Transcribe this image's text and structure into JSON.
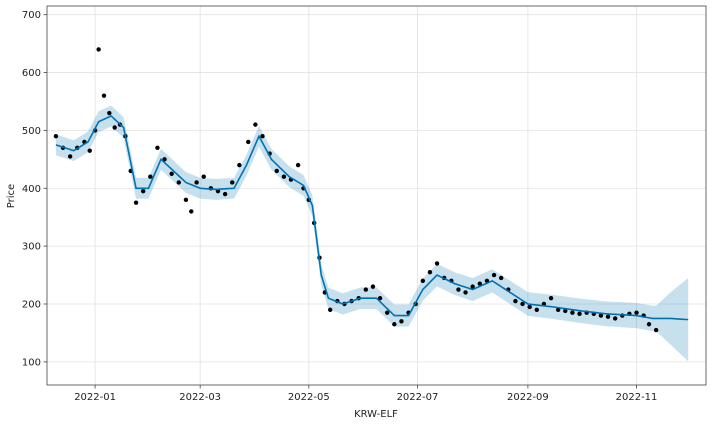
{
  "chart_data": {
    "type": "line",
    "title": "",
    "xlabel": "KRW-ELF",
    "ylabel": "Price",
    "xlim": [
      "2021-12-05",
      "2022-12-10"
    ],
    "ylim": [
      60,
      715
    ],
    "grid": true,
    "x_ticks": [
      "2022-01-01",
      "2022-03-01",
      "2022-05-01",
      "2022-07-01",
      "2022-09-01",
      "2022-11-01"
    ],
    "x_tick_labels": [
      "2022-01",
      "2022-03",
      "2022-05",
      "2022-07",
      "2022-09",
      "2022-11"
    ],
    "y_ticks": [
      100,
      200,
      300,
      400,
      500,
      600,
      700
    ],
    "series": [
      {
        "kind": "observed",
        "color": "#000000",
        "points": [
          [
            "2021-12-10",
            490
          ],
          [
            "2021-12-14",
            470
          ],
          [
            "2021-12-18",
            455
          ],
          [
            "2021-12-22",
            470
          ],
          [
            "2021-12-26",
            480
          ],
          [
            "2021-12-29",
            465
          ],
          [
            "2022-01-01",
            500
          ],
          [
            "2022-01-03",
            640
          ],
          [
            "2022-01-06",
            560
          ],
          [
            "2022-01-09",
            530
          ],
          [
            "2022-01-12",
            505
          ],
          [
            "2022-01-15",
            510
          ],
          [
            "2022-01-18",
            490
          ],
          [
            "2022-01-21",
            430
          ],
          [
            "2022-01-24",
            375
          ],
          [
            "2022-01-28",
            395
          ],
          [
            "2022-02-01",
            420
          ],
          [
            "2022-02-05",
            470
          ],
          [
            "2022-02-09",
            450
          ],
          [
            "2022-02-13",
            425
          ],
          [
            "2022-02-17",
            410
          ],
          [
            "2022-02-21",
            380
          ],
          [
            "2022-02-24",
            360
          ],
          [
            "2022-02-27",
            410
          ],
          [
            "2022-03-03",
            420
          ],
          [
            "2022-03-07",
            400
          ],
          [
            "2022-03-11",
            395
          ],
          [
            "2022-03-15",
            390
          ],
          [
            "2022-03-19",
            410
          ],
          [
            "2022-03-23",
            440
          ],
          [
            "2022-03-28",
            480
          ],
          [
            "2022-04-01",
            510
          ],
          [
            "2022-04-05",
            490
          ],
          [
            "2022-04-09",
            460
          ],
          [
            "2022-04-13",
            430
          ],
          [
            "2022-04-17",
            420
          ],
          [
            "2022-04-21",
            415
          ],
          [
            "2022-04-25",
            440
          ],
          [
            "2022-04-28",
            400
          ],
          [
            "2022-05-01",
            380
          ],
          [
            "2022-05-04",
            340
          ],
          [
            "2022-05-07",
            280
          ],
          [
            "2022-05-10",
            220
          ],
          [
            "2022-05-13",
            190
          ],
          [
            "2022-05-17",
            205
          ],
          [
            "2022-05-21",
            200
          ],
          [
            "2022-05-25",
            205
          ],
          [
            "2022-05-29",
            210
          ],
          [
            "2022-06-02",
            225
          ],
          [
            "2022-06-06",
            230
          ],
          [
            "2022-06-10",
            210
          ],
          [
            "2022-06-14",
            185
          ],
          [
            "2022-06-18",
            165
          ],
          [
            "2022-06-22",
            170
          ],
          [
            "2022-06-26",
            185
          ],
          [
            "2022-06-30",
            200
          ],
          [
            "2022-07-04",
            240
          ],
          [
            "2022-07-08",
            255
          ],
          [
            "2022-07-12",
            270
          ],
          [
            "2022-07-16",
            245
          ],
          [
            "2022-07-20",
            240
          ],
          [
            "2022-07-24",
            225
          ],
          [
            "2022-07-28",
            220
          ],
          [
            "2022-08-01",
            230
          ],
          [
            "2022-08-05",
            235
          ],
          [
            "2022-08-09",
            240
          ],
          [
            "2022-08-13",
            250
          ],
          [
            "2022-08-17",
            245
          ],
          [
            "2022-08-21",
            225
          ],
          [
            "2022-08-25",
            205
          ],
          [
            "2022-08-29",
            200
          ],
          [
            "2022-09-02",
            195
          ],
          [
            "2022-09-06",
            190
          ],
          [
            "2022-09-10",
            200
          ],
          [
            "2022-09-14",
            210
          ],
          [
            "2022-09-18",
            190
          ],
          [
            "2022-09-22",
            188
          ],
          [
            "2022-09-26",
            185
          ],
          [
            "2022-09-30",
            183
          ],
          [
            "2022-10-04",
            185
          ],
          [
            "2022-10-08",
            183
          ],
          [
            "2022-10-12",
            180
          ],
          [
            "2022-10-16",
            178
          ],
          [
            "2022-10-20",
            175
          ],
          [
            "2022-10-24",
            180
          ],
          [
            "2022-10-28",
            183
          ],
          [
            "2022-11-01",
            185
          ],
          [
            "2022-11-05",
            180
          ],
          [
            "2022-11-08",
            165
          ],
          [
            "2022-11-12",
            155
          ]
        ]
      },
      {
        "kind": "trend",
        "color": "#0072B2",
        "points": [
          [
            "2021-12-10",
            475
          ],
          [
            "2021-12-20",
            465
          ],
          [
            "2021-12-28",
            480
          ],
          [
            "2022-01-03",
            515
          ],
          [
            "2022-01-10",
            525
          ],
          [
            "2022-01-17",
            505
          ],
          [
            "2022-01-24",
            400
          ],
          [
            "2022-01-31",
            400
          ],
          [
            "2022-02-07",
            450
          ],
          [
            "2022-02-14",
            430
          ],
          [
            "2022-02-21",
            410
          ],
          [
            "2022-03-01",
            400
          ],
          [
            "2022-03-10",
            398
          ],
          [
            "2022-03-20",
            400
          ],
          [
            "2022-03-27",
            440
          ],
          [
            "2022-04-03",
            490
          ],
          [
            "2022-04-10",
            450
          ],
          [
            "2022-04-20",
            420
          ],
          [
            "2022-04-28",
            405
          ],
          [
            "2022-05-03",
            370
          ],
          [
            "2022-05-08",
            250
          ],
          [
            "2022-05-12",
            210
          ],
          [
            "2022-05-20",
            200
          ],
          [
            "2022-05-30",
            210
          ],
          [
            "2022-06-08",
            210
          ],
          [
            "2022-06-18",
            180
          ],
          [
            "2022-06-26",
            180
          ],
          [
            "2022-07-04",
            225
          ],
          [
            "2022-07-12",
            250
          ],
          [
            "2022-07-22",
            235
          ],
          [
            "2022-08-01",
            225
          ],
          [
            "2022-08-12",
            240
          ],
          [
            "2022-08-22",
            220
          ],
          [
            "2022-09-01",
            200
          ],
          [
            "2022-09-15",
            195
          ],
          [
            "2022-10-01",
            188
          ],
          [
            "2022-10-15",
            183
          ],
          [
            "2022-11-01",
            180
          ],
          [
            "2022-11-10",
            175
          ],
          [
            "2022-11-20",
            175
          ],
          [
            "2022-11-30",
            173
          ]
        ]
      },
      {
        "kind": "uncertainty",
        "color": "#0072B2",
        "band_halfwidth": [
          [
            "2021-12-10",
            18
          ],
          [
            "2022-05-01",
            18
          ],
          [
            "2022-11-12",
            22
          ],
          [
            "2022-11-20",
            45
          ],
          [
            "2022-11-30",
            72
          ]
        ]
      }
    ]
  }
}
